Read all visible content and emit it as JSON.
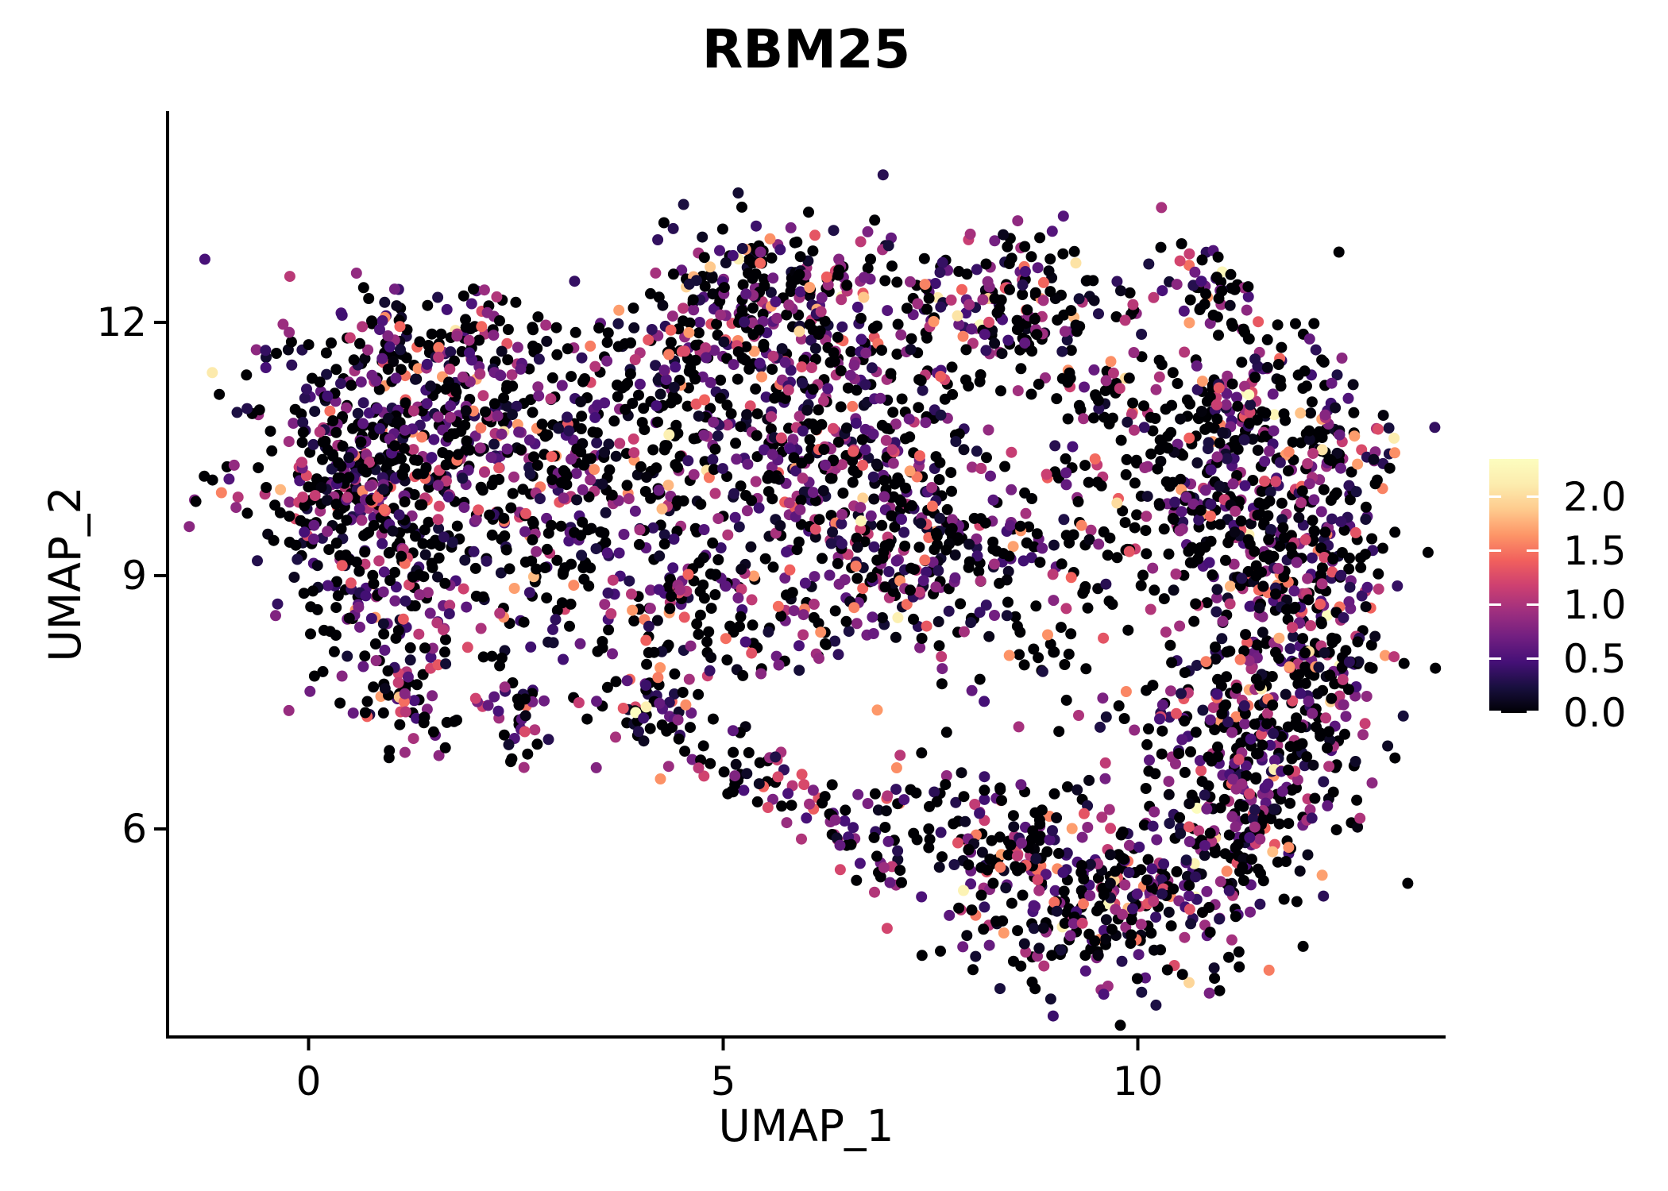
{
  "chart_data": {
    "type": "scatter",
    "title": "RBM25",
    "xlabel": "UMAP_1",
    "ylabel": "UMAP_2",
    "x_ticks": [
      "0",
      "5",
      "10"
    ],
    "x_tick_values": [
      0,
      5,
      10
    ],
    "y_ticks": [
      "6",
      "9",
      "12"
    ],
    "y_tick_values": [
      6,
      9,
      12
    ],
    "x_range": [
      -1.7,
      13.7
    ],
    "y_range": [
      3.5,
      14.6
    ],
    "grid": false,
    "background": "#ffffff",
    "axis_color": "#000000",
    "point_radius_px": 7,
    "colorbar": {
      "position": "right",
      "min": 0.0,
      "max": 2.35,
      "tick_values": [
        2.0,
        1.5,
        1.0,
        0.5,
        0.0
      ],
      "tick_labels": [
        "2.0",
        "1.5",
        "1.0",
        "0.5",
        "0.0"
      ],
      "colormap": "magma",
      "stops": [
        [
          0.0,
          "#000004"
        ],
        [
          0.1,
          "#180f3e"
        ],
        [
          0.2,
          "#451077"
        ],
        [
          0.3,
          "#721f81"
        ],
        [
          0.4,
          "#9f2f7f"
        ],
        [
          0.5,
          "#cd4071"
        ],
        [
          0.6,
          "#f1605d"
        ],
        [
          0.7,
          "#fd9567"
        ],
        [
          0.8,
          "#feca8d"
        ],
        [
          0.9,
          "#fcecae"
        ],
        [
          1.0,
          "#fcfdbf"
        ]
      ]
    },
    "expression_distribution": {
      "p_zero": 0.42,
      "p_zero_dark": 0.72,
      "bands": [
        [
          0.8,
          0.0,
          1.1
        ],
        [
          0.17,
          1.1,
          1.7
        ],
        [
          0.03,
          1.7,
          2.35
        ]
      ]
    },
    "seed": 1337,
    "total_points_approx": 4300,
    "clusters": [
      [
        1.25,
        10.55,
        1.0,
        0.75,
        560
      ],
      [
        1.6,
        11.85,
        0.75,
        0.33,
        85
      ],
      [
        0.35,
        9.95,
        0.45,
        0.5,
        100
      ],
      [
        0.9,
        8.6,
        0.6,
        0.5,
        120
      ],
      [
        1.2,
        7.5,
        0.3,
        0.35,
        55
      ],
      [
        2.5,
        7.3,
        0.22,
        0.25,
        40
      ],
      [
        3.6,
        10.35,
        0.75,
        0.75,
        200
      ],
      [
        4.15,
        7.65,
        0.3,
        0.45,
        65
      ],
      [
        4.7,
        8.9,
        0.5,
        0.4,
        50
      ],
      [
        5.7,
        12.25,
        0.85,
        0.5,
        280
      ],
      [
        5.9,
        10.5,
        0.95,
        0.55,
        230
      ],
      [
        7.35,
        9.25,
        0.8,
        0.65,
        320
      ],
      [
        8.6,
        12.15,
        0.7,
        0.45,
        180
      ],
      [
        9.85,
        10.5,
        0.7,
        0.7,
        120,
        1
      ],
      [
        11.3,
        11.0,
        0.55,
        0.55,
        170
      ],
      [
        11.85,
        9.1,
        0.6,
        0.8,
        300
      ],
      [
        11.25,
        7.2,
        0.7,
        0.55,
        230
      ],
      [
        9.7,
        5.15,
        0.95,
        0.55,
        330
      ],
      [
        8.45,
        5.8,
        0.4,
        0.35,
        60
      ],
      [
        5.3,
        8.45,
        0.9,
        0.5,
        70
      ],
      [
        7.1,
        11.2,
        0.6,
        0.5,
        65
      ],
      [
        12.35,
        10.2,
        0.35,
        0.55,
        70
      ],
      [
        9.3,
        8.6,
        0.55,
        0.55,
        45,
        1
      ],
      [
        2.95,
        8.9,
        0.55,
        0.5,
        65
      ],
      [
        4.6,
        11.4,
        0.5,
        0.45,
        75
      ],
      [
        7.3,
        6.1,
        0.45,
        0.5,
        55
      ],
      [
        11.2,
        6.0,
        0.55,
        0.45,
        140
      ],
      [
        12.2,
        8.0,
        0.3,
        0.6,
        70
      ],
      [
        10.7,
        9.8,
        0.45,
        0.45,
        70
      ],
      [
        10.85,
        12.4,
        0.3,
        0.25,
        45
      ]
    ],
    "strips": [
      {
        "from": [
          4.5,
          7.2
        ],
        "to": [
          7.0,
          5.55
        ],
        "n": 90,
        "jitter": 0.2
      }
    ]
  }
}
